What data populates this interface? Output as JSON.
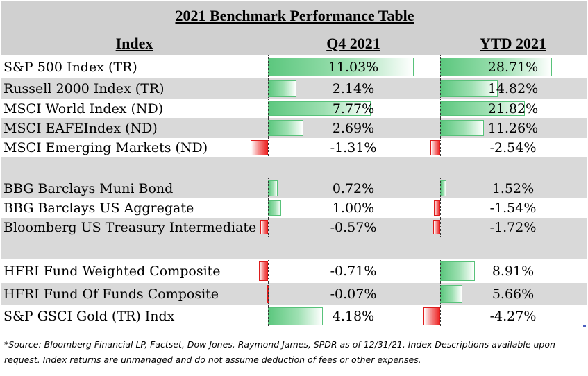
{
  "chart_data": {
    "type": "table",
    "title": "2021 Benchmark Performance Table",
    "columns": [
      "Index",
      "Q4 2021",
      "YTD 2021"
    ],
    "rows": [
      {
        "name": "S&P 500 Index (TR)",
        "q4": 11.03,
        "ytd": 28.71,
        "q4_label": "11.03%",
        "ytd_label": "28.71%"
      },
      {
        "name": "Russell 2000 Index (TR)",
        "q4": 2.14,
        "ytd": 14.82,
        "q4_label": "2.14%",
        "ytd_label": "14.82%"
      },
      {
        "name": "MSCI World Index (ND)",
        "q4": 7.77,
        "ytd": 21.82,
        "q4_label": "7.77%",
        "ytd_label": "21.82%"
      },
      {
        "name": "MSCI EAFEIndex (ND)",
        "q4": 2.69,
        "ytd": 11.26,
        "q4_label": "2.69%",
        "ytd_label": "11.26%"
      },
      {
        "name": "MSCI Emerging Markets (ND)",
        "q4": -1.31,
        "ytd": -2.54,
        "q4_label": "-1.31%",
        "ytd_label": "-2.54%"
      },
      {
        "spacer": true
      },
      {
        "name": "BBG Barclays Muni Bond",
        "q4": 0.72,
        "ytd": 1.52,
        "q4_label": "0.72%",
        "ytd_label": "1.52%"
      },
      {
        "name": "BBG Barclays US Aggregate",
        "q4": 1.0,
        "ytd": -1.54,
        "q4_label": "1.00%",
        "ytd_label": "-1.54%"
      },
      {
        "name": "Bloomberg US Treasury Intermediate",
        "q4": -0.57,
        "ytd": -1.72,
        "q4_label": "-0.57%",
        "ytd_label": "-1.72%"
      },
      {
        "spacer": true
      },
      {
        "name": "HFRI Fund Weighted Composite",
        "q4": -0.71,
        "ytd": 8.91,
        "q4_label": "-0.71%",
        "ytd_label": "8.91%"
      },
      {
        "name": "HFRI Fund Of Funds Composite",
        "q4": -0.07,
        "ytd": 5.66,
        "q4_label": "-0.07%",
        "ytd_label": "5.66%"
      },
      {
        "name": "S&P GSCI Gold (TR) Indx",
        "q4": 4.18,
        "ytd": -4.27,
        "q4_label": "4.18%",
        "ytd_label": "-4.27%"
      }
    ],
    "colors": {
      "positive": "#5cc77e",
      "negative": "#ee2222",
      "header_bg": "#d0d0d0",
      "band_bg": "#d9d9d9"
    }
  },
  "footnote": "*Source: Bloomberg Financial LP, Factset, Dow Jones, Raymond James, SPDR  as of 12/31/21. Index Descriptions available upon request. Index returns are unmanaged and do not assume deduction of fees or other expenses."
}
